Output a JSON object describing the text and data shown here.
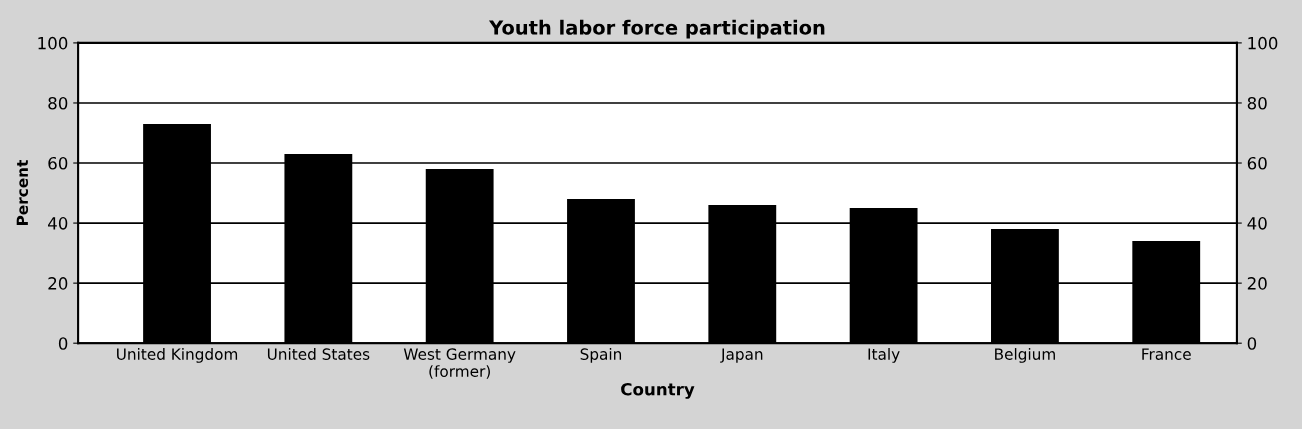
{
  "chart_data": {
    "type": "bar",
    "title": "Youth labor force participation",
    "xlabel": "Country",
    "ylabel": "Percent",
    "categories": [
      "United Kingdom",
      "United States",
      "West Germany\n(former)",
      "Spain",
      "Japan",
      "Italy",
      "Belgium",
      "France"
    ],
    "values": [
      73,
      63,
      58,
      48,
      46,
      45,
      38,
      34
    ],
    "color": "#000000",
    "ylim": [
      0,
      100
    ],
    "yticks": [
      0,
      20,
      40,
      60,
      80,
      100
    ],
    "y2lim": [
      0,
      100
    ],
    "y2ticks": [
      0,
      20,
      40,
      60,
      80,
      100
    ],
    "grid": "y",
    "legend": false
  }
}
